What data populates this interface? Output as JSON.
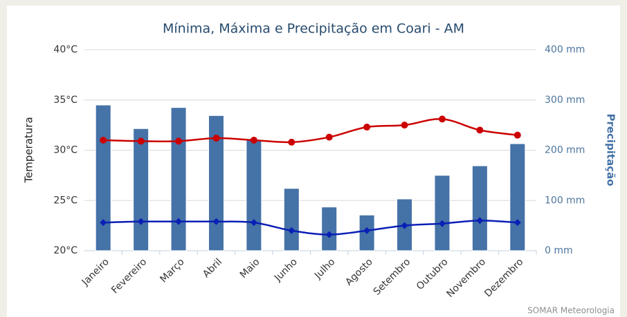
{
  "chart_data": {
    "type": "bar-line",
    "title": "Mínima, Máxima e Precipitação em Coari - AM",
    "y_label": "Temperatura",
    "y2_label": "Precipitação",
    "credit": "SOMAR Meteorologia",
    "categories": [
      "Janeiro",
      "Fevereiro",
      "Março",
      "Abril",
      "Maio",
      "Junho",
      "Julho",
      "Agosto",
      "Setembro",
      "Outubro",
      "Novembro",
      "Dezembro"
    ],
    "ylim": [
      20,
      40
    ],
    "yticks": [
      {
        "value": 20,
        "label": "20°C"
      },
      {
        "value": 25,
        "label": "25°C"
      },
      {
        "value": 30,
        "label": "30°C"
      },
      {
        "value": 35,
        "label": "35°C"
      },
      {
        "value": 40,
        "label": "40°C"
      }
    ],
    "y2lim": [
      0,
      400
    ],
    "y2ticks": [
      {
        "value": 0,
        "label": "0 mm"
      },
      {
        "value": 100,
        "label": "100 mm"
      },
      {
        "value": 200,
        "label": "200 mm"
      },
      {
        "value": 300,
        "label": "300 mm"
      },
      {
        "value": 400,
        "label": "400 mm"
      }
    ],
    "grid": true,
    "series": [
      {
        "type": "bar",
        "axis": "y2",
        "color": "#4572a7",
        "values": [
          290,
          243,
          285,
          269,
          220,
          124,
          87,
          71,
          103,
          150,
          169,
          213
        ]
      },
      {
        "type": "line",
        "color": "#cc0000",
        "values": [
          31.0,
          30.9,
          30.9,
          31.2,
          31.0,
          30.8,
          31.3,
          32.3,
          32.5,
          33.1,
          32.0,
          31.5
        ]
      },
      {
        "type": "line",
        "color": "#0a1fb5",
        "marker": "diamond",
        "values": [
          22.8,
          22.9,
          22.9,
          22.9,
          22.8,
          22.0,
          21.6,
          22.0,
          22.5,
          22.7,
          23.0,
          22.8
        ]
      }
    ]
  }
}
